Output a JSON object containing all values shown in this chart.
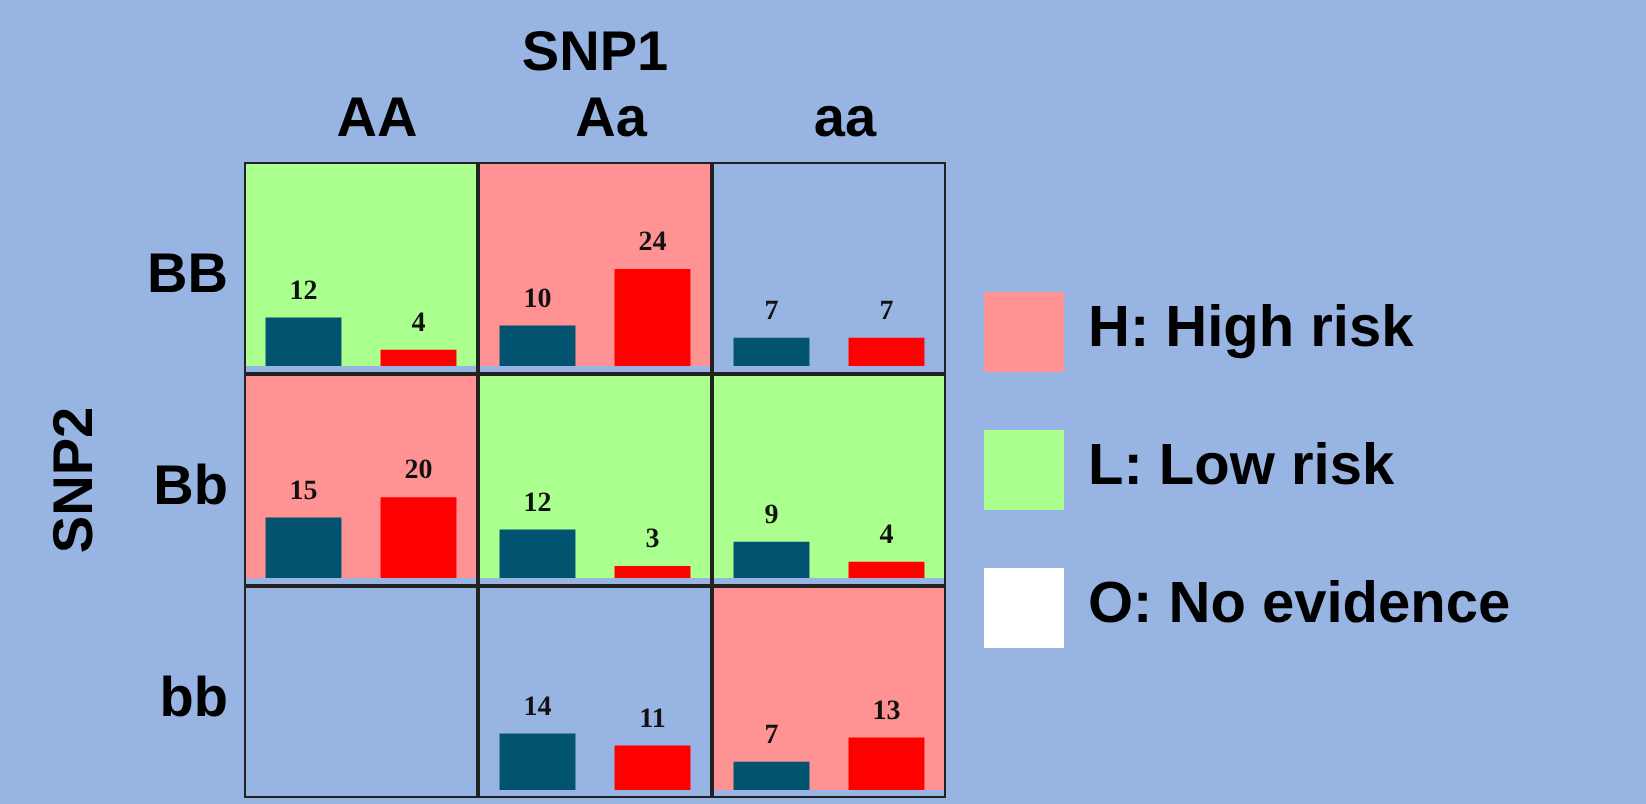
{
  "chart_data": [
    {
      "type": "bar",
      "title": "AA",
      "ylabel": "BB",
      "categories": [
        null,
        null
      ],
      "values": [
        12,
        4
      ],
      "colors": [
        "#02536f",
        "#ff0000"
      ],
      "data_labels": true,
      "ylim": [
        0,
        50
      ],
      "tick_labels": false,
      "bands": [
        {
          "axis": "y",
          "from": 0,
          "to": 50,
          "color": "#aaff8f",
          "label": null
        }
      ]
    },
    {
      "type": "bar",
      "title": "Aa",
      "annotations": [
        "SNP1"
      ],
      "categories": [
        null,
        null
      ],
      "values": [
        10,
        24
      ],
      "colors": [
        "#02536f",
        "#ff0000"
      ],
      "data_labels": true,
      "ylim": [
        0,
        50
      ],
      "tick_labels": false,
      "bands": [
        {
          "axis": "y",
          "from": 0,
          "to": 50,
          "color": "#ff9393",
          "label": null
        }
      ]
    },
    {
      "type": "bar",
      "title": "aa",
      "categories": [
        null,
        null
      ],
      "values": [
        7,
        7
      ],
      "colors": [
        "#02536f",
        "#ff0000"
      ],
      "data_labels": true,
      "ylim": [
        0,
        50
      ],
      "tick_labels": false
    },
    {
      "type": "bar",
      "ylabel": "Bb",
      "annotations": [
        "SNP2"
      ],
      "categories": [
        null,
        null
      ],
      "values": [
        15,
        20
      ],
      "colors": [
        "#02536f",
        "#ff0000"
      ],
      "data_labels": true,
      "ylim": [
        0,
        50
      ],
      "tick_labels": false,
      "bands": [
        {
          "axis": "y",
          "from": 0,
          "to": 50,
          "color": "#ff9393",
          "label": null
        }
      ]
    },
    {
      "type": "bar",
      "categories": [
        null,
        null
      ],
      "values": [
        12,
        3
      ],
      "colors": [
        "#02536f",
        "#ff0000"
      ],
      "data_labels": true,
      "ylim": [
        0,
        50
      ],
      "tick_labels": false,
      "bands": [
        {
          "axis": "y",
          "from": 0,
          "to": 50,
          "color": "#aaff8f",
          "label": null
        }
      ]
    },
    {
      "type": "bar",
      "categories": [
        null,
        null
      ],
      "values": [
        9,
        4
      ],
      "colors": [
        "#02536f",
        "#ff0000"
      ],
      "data_labels": true,
      "ylim": [
        0,
        50
      ],
      "tick_labels": false,
      "bands": [
        {
          "axis": "y",
          "from": 0,
          "to": 50,
          "color": "#aaff8f",
          "label": null
        }
      ]
    },
    {
      "type": "other",
      "ylabel": "bb"
    },
    {
      "type": "bar",
      "categories": [
        null,
        null
      ],
      "values": [
        14,
        11
      ],
      "colors": [
        "#02536f",
        "#ff0000"
      ],
      "data_labels": true,
      "ylim": [
        0,
        50
      ],
      "tick_labels": false
    },
    {
      "type": "bar",
      "categories": [
        null,
        null
      ],
      "values": [
        7,
        13
      ],
      "colors": [
        "#02536f",
        "#ff0000"
      ],
      "data_labels": true,
      "ylim": [
        0,
        50
      ],
      "tick_labels": false,
      "bands": [
        {
          "axis": "y",
          "from": 0,
          "to": 50,
          "color": "#ff9393",
          "label": null
        }
      ]
    },
    {
      "type": "other",
      "categories": [
        "H: High risk",
        "L: Low risk",
        "O: No evidence"
      ],
      "colors": [
        "#ff9393",
        "#aaff8f",
        "#ffffff"
      ]
    }
  ]
}
